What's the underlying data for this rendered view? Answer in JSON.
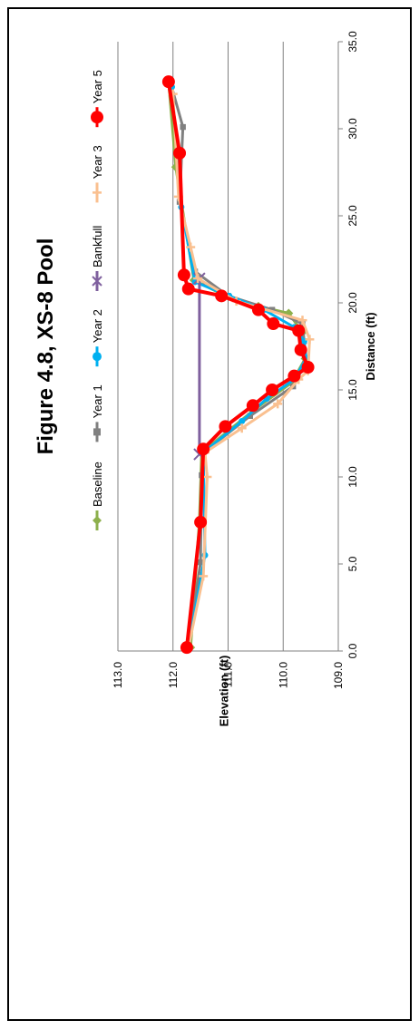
{
  "chart_data": {
    "type": "line",
    "title": "Figure 4.8, XS-8 Pool",
    "xlabel": "Distance (ft)",
    "ylabel": "Elevation (ft)",
    "xlim": [
      0,
      35
    ],
    "ylim": [
      109,
      113
    ],
    "xticks": [
      "0.0",
      "5.0",
      "10.0",
      "15.0",
      "20.0",
      "25.0",
      "30.0",
      "35.0"
    ],
    "yticks": [
      "109.0",
      "110.0",
      "111.0",
      "112.0",
      "113.0"
    ],
    "grid": "horizontal",
    "legend_position": "top",
    "series": [
      {
        "name": "Baseline",
        "color": "#8db04c",
        "marker": "diamond",
        "x": [
          0.2,
          7.5,
          11.4,
          13.8,
          15.4,
          16.8,
          18.3,
          19.4,
          19.8,
          20.4,
          21.3,
          27.8,
          32.7
        ],
        "y": [
          111.68,
          111.52,
          111.48,
          110.55,
          109.85,
          109.6,
          109.65,
          109.9,
          110.45,
          111.05,
          111.62,
          111.95,
          112.08
        ]
      },
      {
        "name": "Year 1",
        "color": "#808080",
        "marker": "square",
        "x": [
          0.2,
          5.1,
          10.1,
          11.4,
          13.5,
          15.2,
          16.5,
          17.8,
          18.8,
          19.6,
          20.4,
          21.8,
          25.8,
          30.1,
          32.7
        ],
        "y": [
          111.72,
          111.5,
          111.48,
          111.45,
          110.6,
          109.82,
          109.6,
          109.62,
          109.65,
          110.2,
          111.0,
          111.6,
          111.88,
          111.82,
          112.05
        ]
      },
      {
        "name": "Year 2",
        "color": "#00b0f0",
        "marker": "circle",
        "x": [
          0.2,
          5.5,
          11.4,
          13.2,
          14.5,
          15.6,
          16.8,
          17.8,
          18.6,
          19.6,
          20.4,
          21.2,
          25.5,
          32.4
        ],
        "y": [
          111.72,
          111.42,
          111.45,
          110.75,
          110.3,
          109.8,
          109.58,
          109.62,
          109.8,
          110.35,
          110.98,
          111.6,
          111.85,
          112.02
        ]
      },
      {
        "name": "Bankfull",
        "color": "#7f609e",
        "marker": "x",
        "x": [
          11.3,
          21.4
        ],
        "y": [
          111.52,
          111.52
        ]
      },
      {
        "name": "Year 3",
        "color": "#fac090",
        "marker": "plus",
        "x": [
          0.2,
          4.3,
          10.0,
          11.4,
          12.8,
          14.2,
          15.6,
          16.1,
          17.9,
          19.0,
          20.1,
          21.4,
          23.2,
          26.1,
          32.0
        ],
        "y": [
          111.72,
          111.45,
          111.38,
          111.42,
          110.75,
          110.1,
          109.72,
          109.55,
          109.52,
          109.65,
          110.85,
          111.55,
          111.68,
          111.9,
          112.0
        ]
      },
      {
        "name": "Year 5",
        "color": "#ff0000",
        "marker": "circle",
        "x": [
          0.2,
          7.4,
          11.6,
          12.9,
          14.1,
          15.0,
          15.8,
          16.3,
          17.3,
          18.4,
          18.8,
          19.6,
          20.4,
          20.8,
          21.6,
          28.6,
          32.7
        ],
        "y": [
          111.75,
          111.5,
          111.45,
          111.05,
          110.55,
          110.2,
          109.8,
          109.55,
          109.68,
          109.72,
          110.18,
          110.45,
          111.12,
          111.72,
          111.8,
          111.88,
          112.08
        ]
      }
    ]
  }
}
